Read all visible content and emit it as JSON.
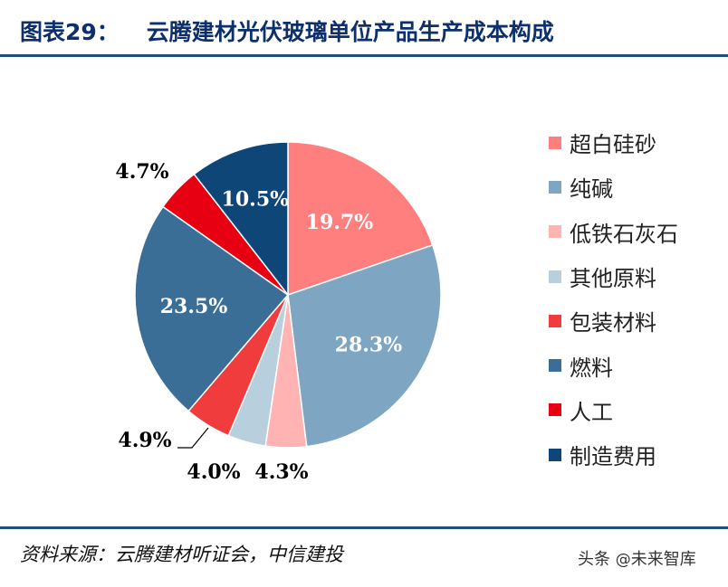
{
  "header": {
    "figure_number": "图表29：",
    "title": "云腾建材光伏玻璃单位产品生产成本构成"
  },
  "footer": {
    "source": "资料来源：云腾建材听证会，中信建投",
    "watermark_prefix": "头条",
    "watermark_at": "@",
    "watermark_name": "未来智库"
  },
  "chart_data": {
    "type": "pie",
    "title": "云腾建材光伏玻璃单位产品生产成本构成",
    "start_angle_deg": 0,
    "direction": "clockwise",
    "legend_position": "right",
    "slices": [
      {
        "label": "超白硅砂",
        "value": 19.7,
        "display": "19.7%",
        "color": "#ff7f7f"
      },
      {
        "label": "纯碱",
        "value": 28.3,
        "display": "28.3%",
        "color": "#7ea6c2"
      },
      {
        "label": "低铁石灰石",
        "value": 4.3,
        "display": "4.3%",
        "color": "#ffb3b3"
      },
      {
        "label": "其他原料",
        "value": 4.0,
        "display": "4.0%",
        "color": "#b8cfde"
      },
      {
        "label": "包装材料",
        "value": 4.9,
        "display": "4.9%",
        "color": "#f03c3c"
      },
      {
        "label": "燃料",
        "value": 23.5,
        "display": "23.5%",
        "color": "#3a6e96"
      },
      {
        "label": "人工",
        "value": 4.7,
        "display": "4.7%",
        "color": "#e60012"
      },
      {
        "label": "制造费用",
        "value": 10.5,
        "display": "10.5%",
        "color": "#0d4677"
      }
    ]
  }
}
